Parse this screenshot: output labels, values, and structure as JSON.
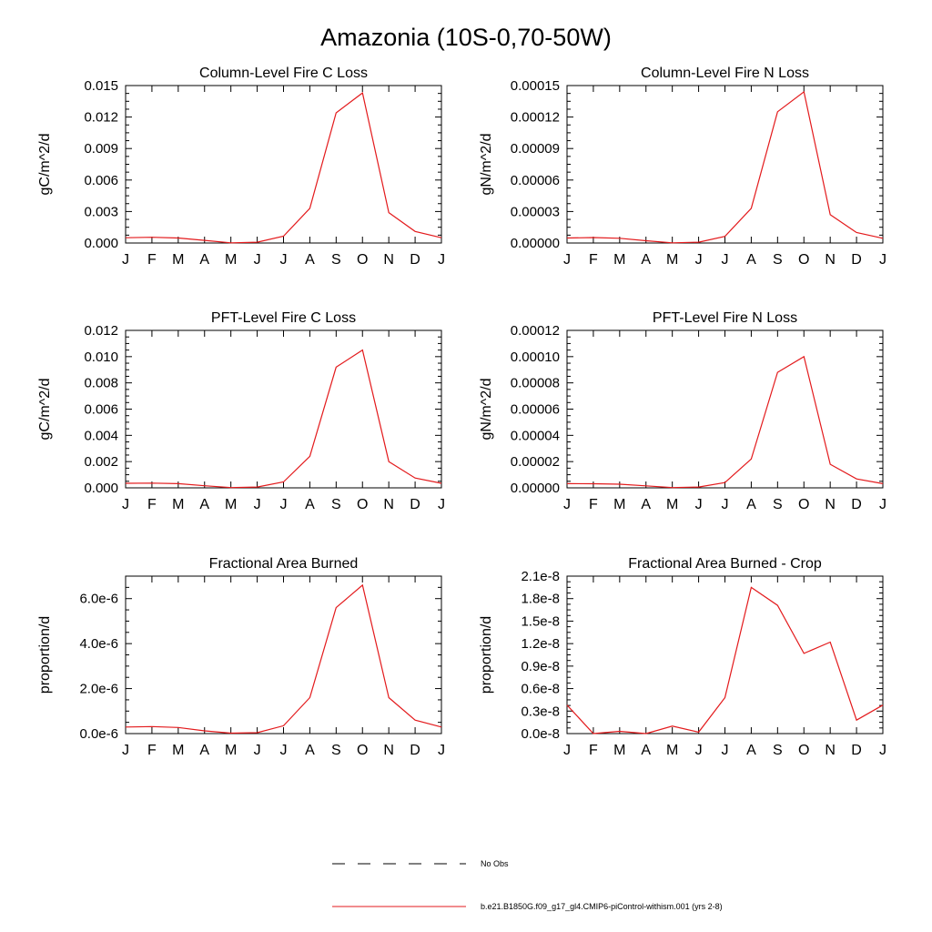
{
  "title": "Amazonia (10S-0,70-50W)",
  "months": [
    "J",
    "F",
    "M",
    "A",
    "M",
    "J",
    "J",
    "A",
    "S",
    "O",
    "N",
    "D",
    "J"
  ],
  "colors": {
    "series": "#e31a1c",
    "axis": "#000000",
    "obs": "#000000"
  },
  "legend": {
    "obs_label": "No Obs",
    "model_label": "b.e21.B1850G.f09_g17_gl4.CMIP6-piControl-withism.001 (yrs 2-8)"
  },
  "chart_data": [
    {
      "type": "line",
      "title": "Column-Level Fire C Loss",
      "ylabel": "gC/m^2/d",
      "ylim": [
        0,
        0.015
      ],
      "yticks": [
        0,
        0.003,
        0.006,
        0.009,
        0.012,
        0.015
      ],
      "ytick_labels": [
        "0.000",
        "0.003",
        "0.006",
        "0.009",
        "0.012",
        "0.015"
      ],
      "values": [
        0.0005,
        0.00055,
        0.00048,
        0.00025,
        2e-05,
        8e-05,
        0.00065,
        0.0033,
        0.0124,
        0.0143,
        0.0029,
        0.0011,
        0.0005
      ]
    },
    {
      "type": "line",
      "title": "Column-Level Fire N Loss",
      "ylabel": "gN/m^2/d",
      "ylim": [
        0,
        0.00015
      ],
      "yticks": [
        0,
        3e-05,
        6e-05,
        9e-05,
        0.00012,
        0.00015
      ],
      "ytick_labels": [
        "0.00000",
        "0.00003",
        "0.00006",
        "0.00009",
        "0.00012",
        "0.00015"
      ],
      "values": [
        4.8e-06,
        5.2e-06,
        4.5e-06,
        2.2e-06,
        2e-07,
        8e-07,
        6.3e-06,
        3.3e-05,
        0.000125,
        0.000144,
        2.7e-05,
        1e-05,
        4.5e-06
      ]
    },
    {
      "type": "line",
      "title": "PFT-Level Fire C Loss",
      "ylabel": "gC/m^2/d",
      "ylim": [
        0,
        0.012
      ],
      "yticks": [
        0,
        0.002,
        0.004,
        0.006,
        0.008,
        0.01,
        0.012
      ],
      "ytick_labels": [
        "0.000",
        "0.002",
        "0.004",
        "0.006",
        "0.008",
        "0.010",
        "0.012"
      ],
      "values": [
        0.00035,
        0.00036,
        0.00032,
        0.00016,
        2e-05,
        6e-05,
        0.00045,
        0.0024,
        0.0092,
        0.0105,
        0.002,
        0.00075,
        0.00035
      ]
    },
    {
      "type": "line",
      "title": "PFT-Level Fire N Loss",
      "ylabel": "gN/m^2/d",
      "ylim": [
        0,
        0.00012
      ],
      "yticks": [
        0,
        2e-05,
        4e-05,
        6e-05,
        8e-05,
        0.0001,
        0.00012
      ],
      "ytick_labels": [
        "0.00000",
        "0.00002",
        "0.00004",
        "0.00006",
        "0.00008",
        "0.00010",
        "0.00012"
      ],
      "values": [
        3.2e-06,
        3.1e-06,
        2.8e-06,
        1.5e-06,
        2e-07,
        6e-07,
        4e-06,
        2.2e-05,
        8.8e-05,
        0.0001,
        1.8e-05,
        6.8e-06,
        3.2e-06
      ]
    },
    {
      "type": "line",
      "title": "Fractional Area Burned",
      "ylabel": "proportion/d",
      "ylim": [
        0,
        7e-06
      ],
      "yticks": [
        0,
        2e-06,
        4e-06,
        6e-06
      ],
      "ytick_labels": [
        "0.0e-6",
        "2.0e-6",
        "4.0e-6",
        "6.0e-6"
      ],
      "values": [
        2.9e-07,
        3.1e-07,
        2.7e-07,
        1.2e-07,
        2e-08,
        4e-08,
        3.5e-07,
        1.6e-06,
        5.6e-06,
        6.6e-06,
        1.6e-06,
        6e-07,
        2.9e-07
      ]
    },
    {
      "type": "line",
      "title": "Fractional Area Burned - Crop",
      "ylabel": "proportion/d",
      "ylim": [
        0,
        2.1e-08
      ],
      "yticks": [
        0,
        3e-09,
        6e-09,
        9e-09,
        1.2e-08,
        1.5e-08,
        1.8e-08,
        2.1e-08
      ],
      "ytick_labels": [
        "0.0e-8",
        "0.3e-8",
        "0.6e-8",
        "0.9e-8",
        "1.2e-8",
        "1.5e-8",
        "1.8e-8",
        "2.1e-8"
      ],
      "values": [
        3.8e-09,
        0.0,
        3e-10,
        0.0,
        1e-09,
        2e-10,
        4.8e-09,
        1.95e-08,
        1.71e-08,
        1.07e-08,
        1.22e-08,
        1.8e-09,
        3.8e-09
      ]
    }
  ]
}
